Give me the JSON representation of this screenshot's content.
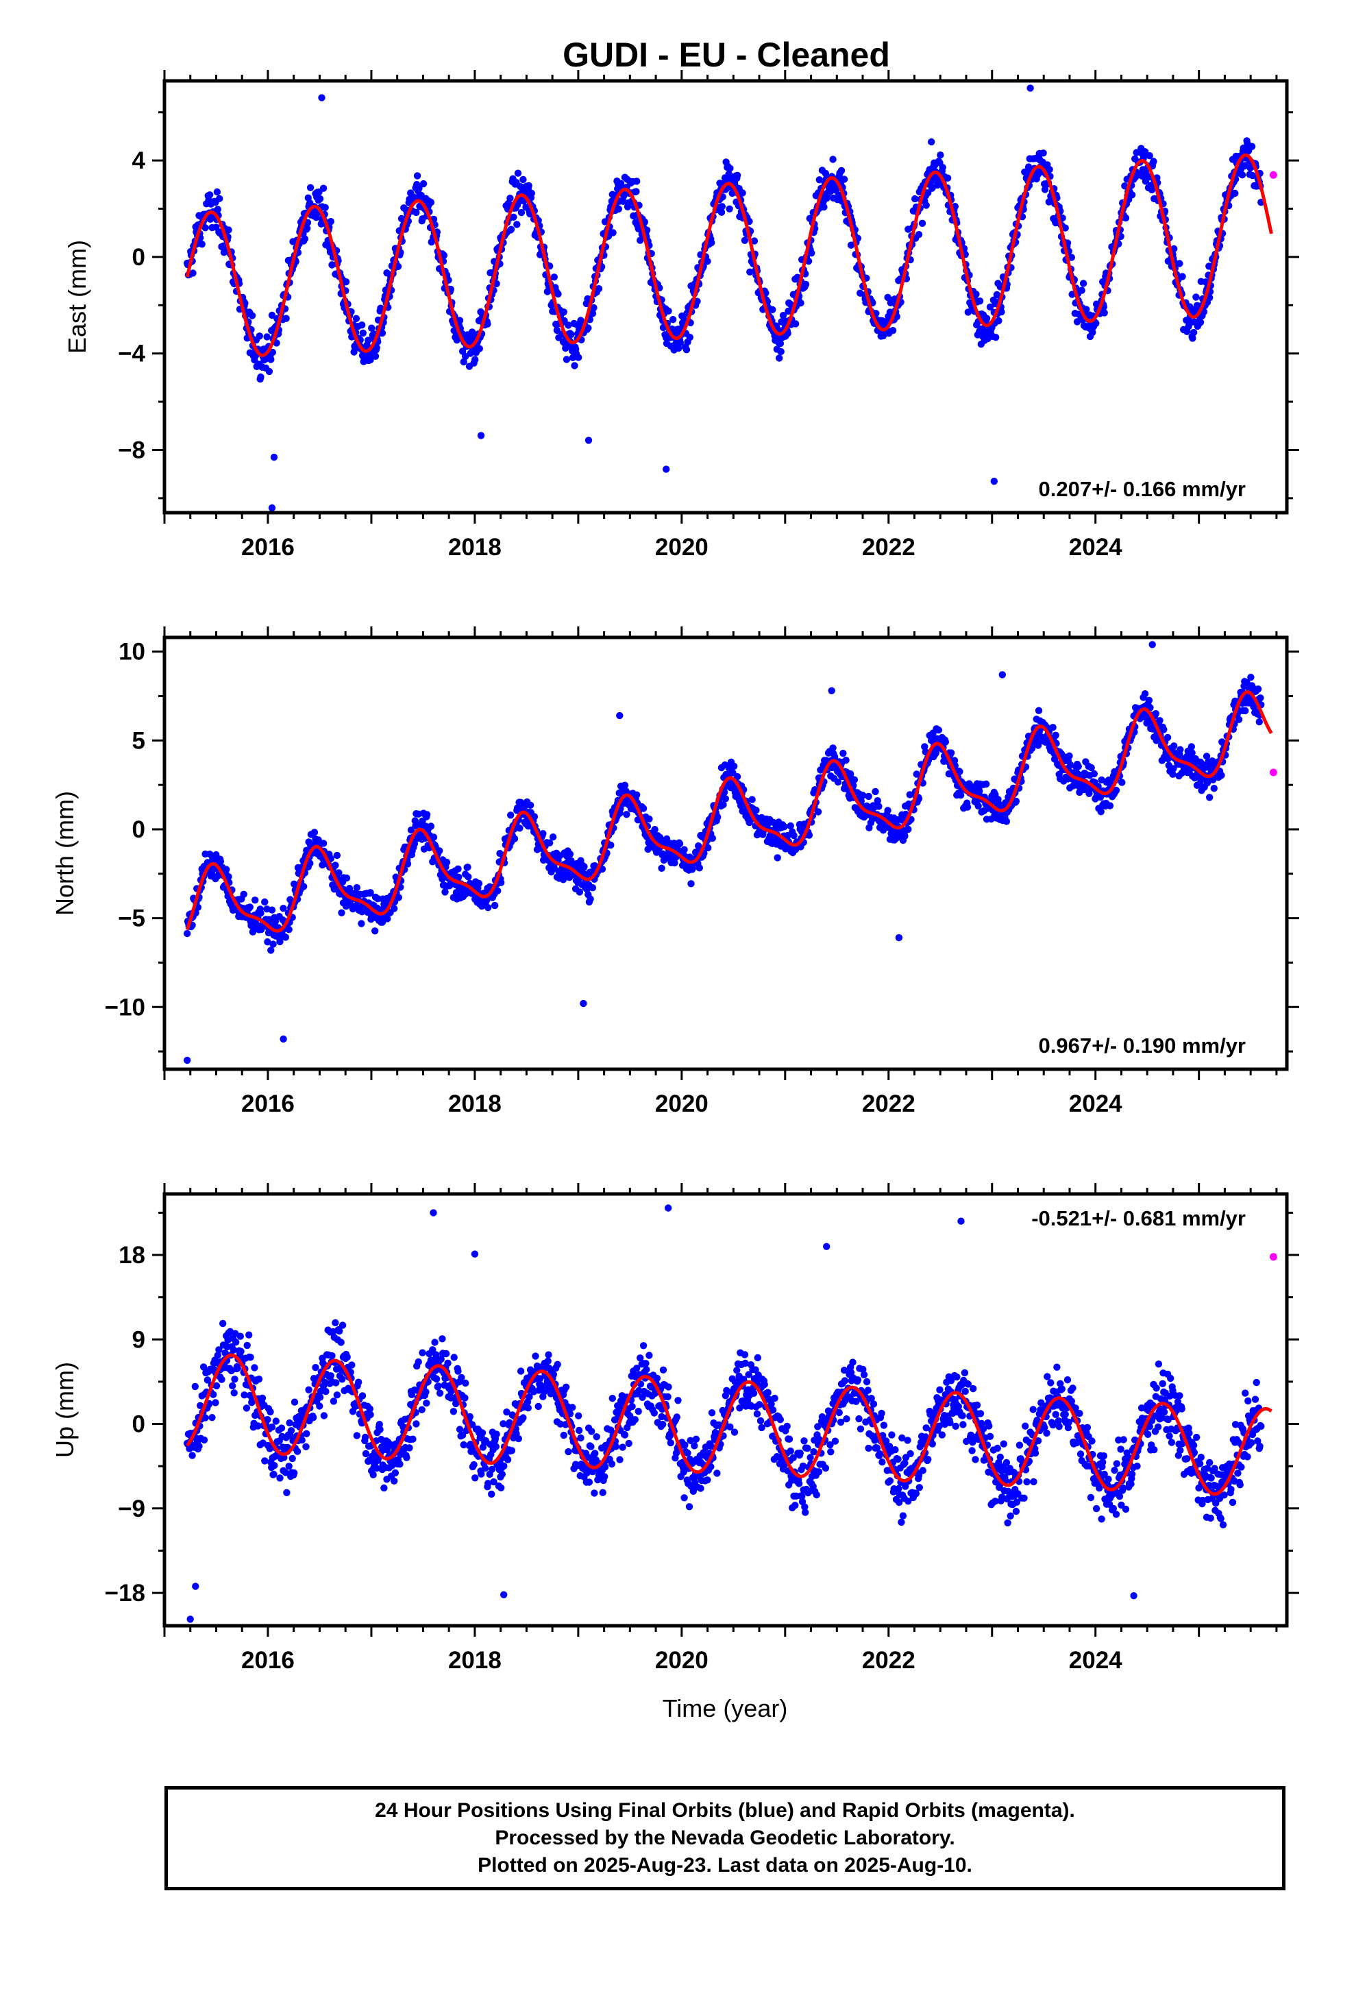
{
  "title": "GUDI  - EU - Cleaned",
  "xlabel": "Time (year)",
  "caption": [
    "24 Hour Positions Using Final Orbits (blue) and Rapid Orbits (magenta).",
    "Processed by the Nevada Geodetic Laboratory.",
    "Plotted on 2025-Aug-23. Last data on 2025-Aug-10."
  ],
  "colors": {
    "final_orbits": "#0000ff",
    "rapid_orbits": "#ff00ff",
    "model_fit": "#ff0000"
  },
  "chart_data": [
    {
      "type": "scatter",
      "ylabel": "East (mm)",
      "rate_text": "0.207+/- 0.166 mm/yr",
      "xlim": [
        2015.0,
        2025.85
      ],
      "ylim": [
        -10.6,
        7.3
      ],
      "xticks": [
        2016,
        2018,
        2020,
        2022,
        2024
      ],
      "yticks": [
        -8,
        -4,
        0,
        4
      ],
      "data_start": 2015.22,
      "data_end": 2025.6,
      "model": {
        "offset": -1.25,
        "rate": 0.207,
        "amplitude": 3.0,
        "amplitude_change": 0.03,
        "peak_phase": 0.45
      },
      "noise_sd": 1.1,
      "rapid_points": [
        [
          2025.72,
          3.4
        ]
      ],
      "outliers": [
        [
          2016.04,
          -10.4
        ],
        [
          2016.06,
          -8.3
        ],
        [
          2019.85,
          -8.8
        ],
        [
          2023.02,
          -9.3
        ],
        [
          2018.06,
          -7.4
        ],
        [
          2016.52,
          6.6
        ],
        [
          2023.37,
          7.0
        ],
        [
          2019.1,
          -7.6
        ]
      ],
      "series": [
        {
          "name": "Final Orbits",
          "color": "#0000ff"
        },
        {
          "name": "Rapid Orbits",
          "color": "#ff00ff"
        }
      ]
    },
    {
      "type": "scatter",
      "ylabel": "North (mm)",
      "rate_text": "0.967+/- 0.190 mm/yr",
      "xlim": [
        2015.0,
        2025.85
      ],
      "ylim": [
        -13.5,
        10.8
      ],
      "xticks": [
        2016,
        2018,
        2020,
        2022,
        2024
      ],
      "yticks": [
        -10,
        -5,
        0,
        5,
        10
      ],
      "data_start": 2015.22,
      "data_end": 2025.6,
      "model": {
        "offset": -4.9,
        "rate": 0.967,
        "amplitude": 2.6,
        "amplitude_change": 0.0,
        "peak_phase": 0.5,
        "sawtooth": true
      },
      "noise_sd": 1.2,
      "rapid_points": [
        [
          2025.72,
          3.2
        ]
      ],
      "outliers": [
        [
          2015.22,
          -13.0
        ],
        [
          2016.15,
          -11.8
        ],
        [
          2019.05,
          -9.8
        ],
        [
          2024.55,
          10.4
        ],
        [
          2019.4,
          6.4
        ],
        [
          2021.45,
          7.8
        ],
        [
          2023.1,
          8.7
        ],
        [
          2022.1,
          -6.1
        ]
      ],
      "series": [
        {
          "name": "Final Orbits",
          "color": "#0000ff"
        },
        {
          "name": "Rapid Orbits",
          "color": "#ff00ff"
        }
      ]
    },
    {
      "type": "scatter",
      "ylabel": "Up (mm)",
      "rate_text": "-0.521+/- 0.681 mm/yr",
      "xlim": [
        2015.0,
        2025.85
      ],
      "ylim": [
        -21.5,
        24.5
      ],
      "xticks": [
        2016,
        2018,
        2020,
        2022,
        2024
      ],
      "yticks": [
        -18,
        -9,
        0,
        9,
        18
      ],
      "data_start": 2015.22,
      "data_end": 2025.6,
      "model": {
        "offset": 2.5,
        "rate": -0.521,
        "amplitude": 5.2,
        "amplitude_change": -0.05,
        "peak_phase": 0.65
      },
      "noise_sd": 4.6,
      "rapid_points": [
        [
          2025.72,
          17.8
        ]
      ],
      "outliers": [
        [
          2015.25,
          -20.8
        ],
        [
          2015.3,
          -17.3
        ],
        [
          2017.6,
          22.5
        ],
        [
          2019.87,
          23.0
        ],
        [
          2018.28,
          -18.2
        ],
        [
          2024.37,
          -18.3
        ],
        [
          2018.0,
          18.1
        ],
        [
          2022.7,
          21.6
        ],
        [
          2021.4,
          18.9
        ]
      ],
      "series": [
        {
          "name": "Final Orbits",
          "color": "#0000ff"
        },
        {
          "name": "Rapid Orbits",
          "color": "#ff00ff"
        }
      ]
    }
  ]
}
